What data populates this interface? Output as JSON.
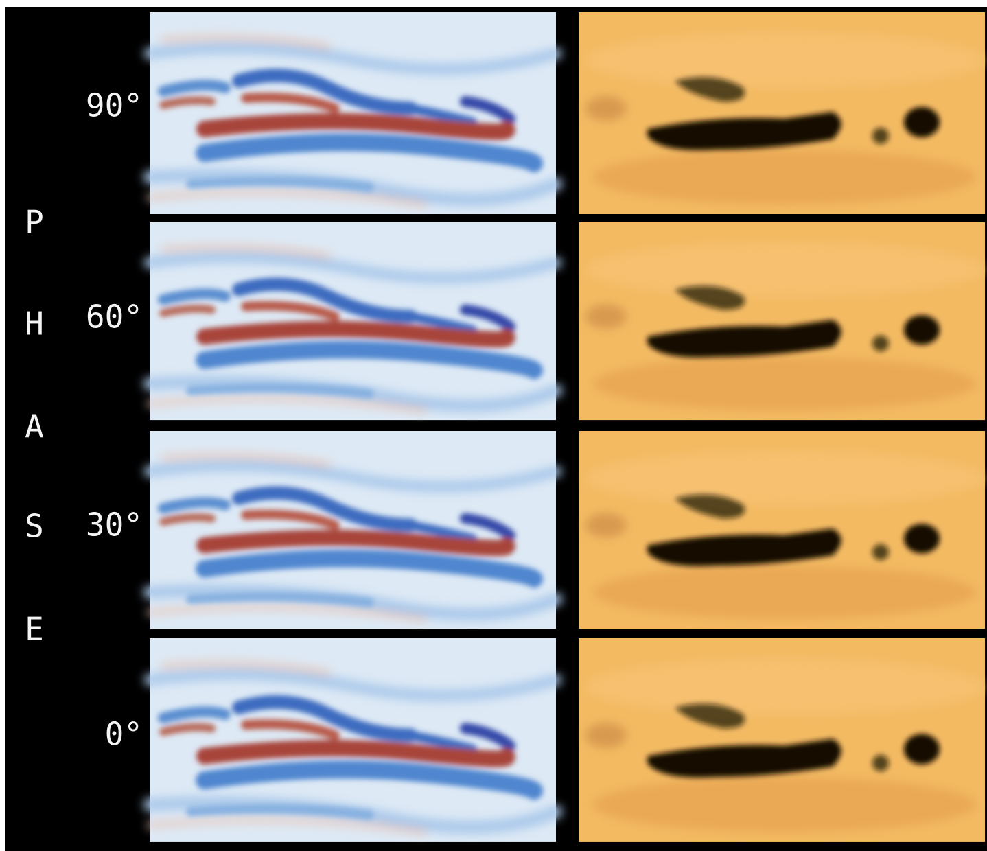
{
  "side_label": {
    "letters": [
      "P",
      "H",
      "A",
      "S",
      "E"
    ]
  },
  "panels": [
    {
      "label": "90°"
    },
    {
      "label": "60°"
    },
    {
      "label": "30°"
    },
    {
      "label": "0°"
    }
  ]
}
